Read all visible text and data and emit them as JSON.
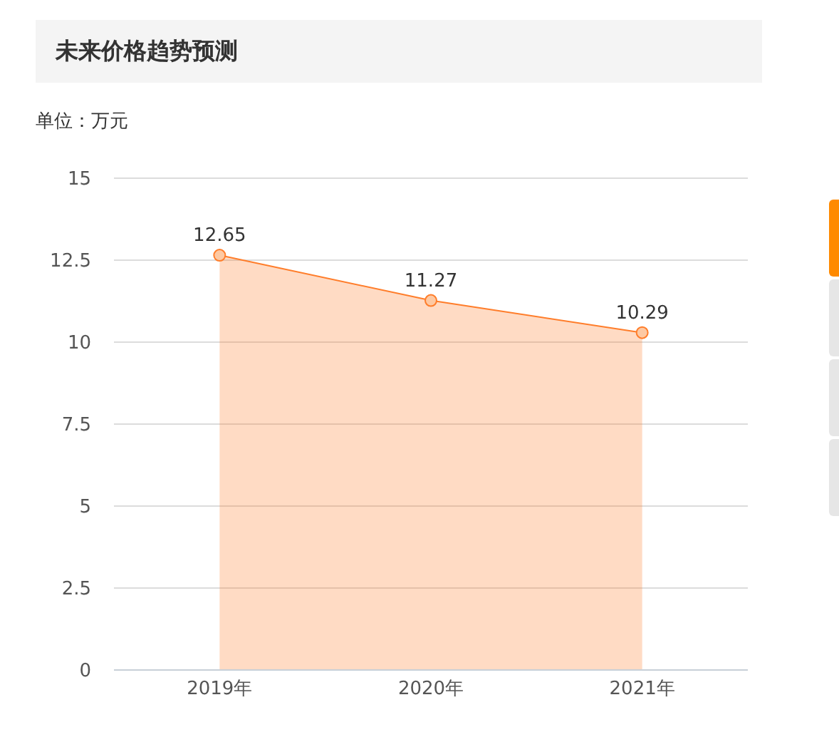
{
  "chart_data": {
    "type": "area",
    "title": "未来价格趋势预测",
    "ylabel": "单位：万元",
    "categories": [
      "2019年",
      "2020年",
      "2021年"
    ],
    "series": [
      {
        "color": "#ff7d2a",
        "values": [
          12.65,
          11.27,
          10.29
        ]
      }
    ],
    "ylim": [
      0,
      15
    ],
    "yticks": [
      0,
      2.5,
      5,
      7.5,
      10,
      12.5,
      15
    ],
    "grid": "y",
    "data_labels": true,
    "marker": "circle"
  }
}
